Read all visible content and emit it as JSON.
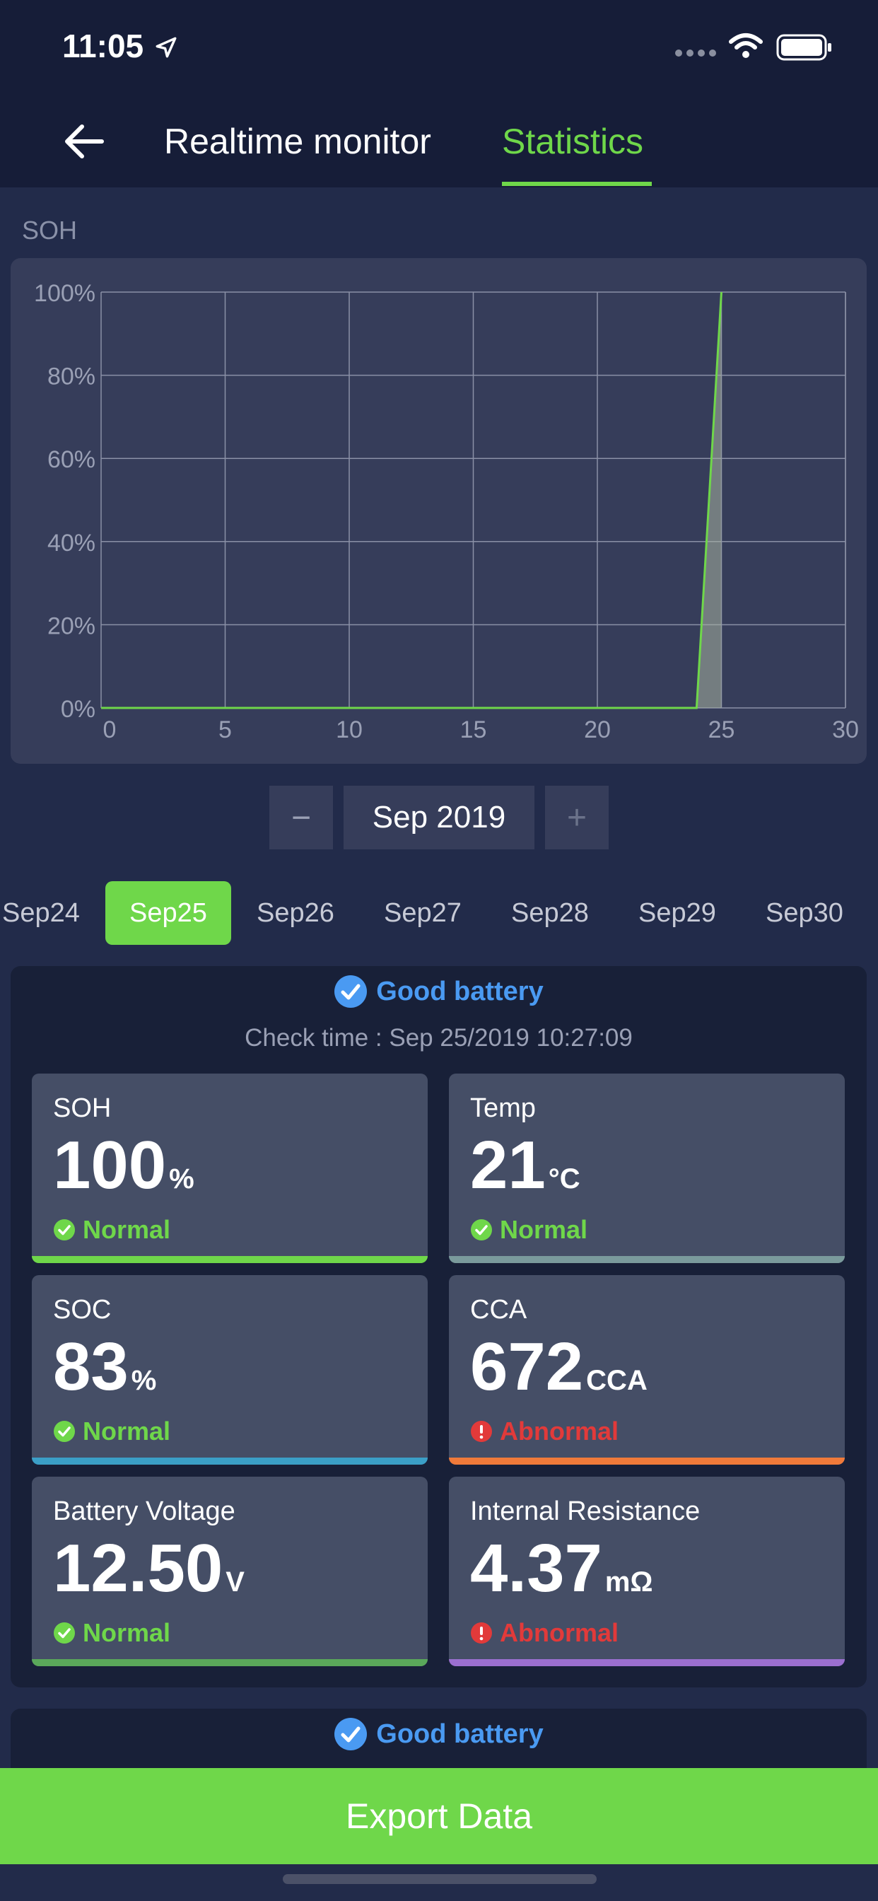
{
  "status_bar": {
    "time": "11:05"
  },
  "nav": {
    "tab_realtime": "Realtime monitor",
    "tab_statistics": "Statistics"
  },
  "chart_section_label": "SOH",
  "chart_data": {
    "type": "line",
    "title": "",
    "xlabel": "",
    "ylabel": "",
    "x": [
      0,
      24,
      25
    ],
    "y": [
      0,
      0,
      100
    ],
    "xlim": [
      0,
      30
    ],
    "ylim": [
      0,
      100
    ],
    "x_ticks": [
      "0",
      "5",
      "10",
      "15",
      "20",
      "25",
      "30"
    ],
    "y_ticks": [
      "0%",
      "20%",
      "40%",
      "60%",
      "80%",
      "100%"
    ],
    "grid": true,
    "colors": {
      "line": "#6fd74a"
    }
  },
  "month_selector": {
    "minus": "−",
    "label": "Sep 2019",
    "plus": "+"
  },
  "days": [
    "Sep24",
    "Sep25",
    "Sep26",
    "Sep27",
    "Sep28",
    "Sep29",
    "Sep30"
  ],
  "selected_day": "Sep25",
  "result": {
    "good_label": "Good battery",
    "check_time": "Check time : Sep 25/2019 10:27:09",
    "metrics": [
      {
        "title": "SOH",
        "value": "100",
        "unit": "%",
        "status": "Normal",
        "status_type": "ok",
        "color": "#6fd74a"
      },
      {
        "title": "Temp",
        "value": "21",
        "unit": "°C",
        "status": "Normal",
        "status_type": "ok",
        "color": "#7a9a9c"
      },
      {
        "title": "SOC",
        "value": "83",
        "unit": "%",
        "status": "Normal",
        "status_type": "ok",
        "color": "#3b9fc7"
      },
      {
        "title": "CCA",
        "value": "672",
        "unit": "CCA",
        "status": "Abnormal",
        "status_type": "bad",
        "color": "#f07a3a"
      },
      {
        "title": "Battery Voltage",
        "value": "12.50",
        "unit": "V",
        "status": "Normal",
        "status_type": "ok",
        "color": "#5aa85a"
      },
      {
        "title": "Internal Resistance",
        "value": "4.37",
        "unit": "mΩ",
        "status": "Abnormal",
        "status_type": "bad",
        "color": "#9b6fd0"
      }
    ]
  },
  "result2": {
    "good_label": "Good battery"
  },
  "export_button": "Export Data",
  "colors": {
    "accent": "#6fd74a",
    "good": "#4a9af2",
    "abnormal": "#e23a3a"
  }
}
